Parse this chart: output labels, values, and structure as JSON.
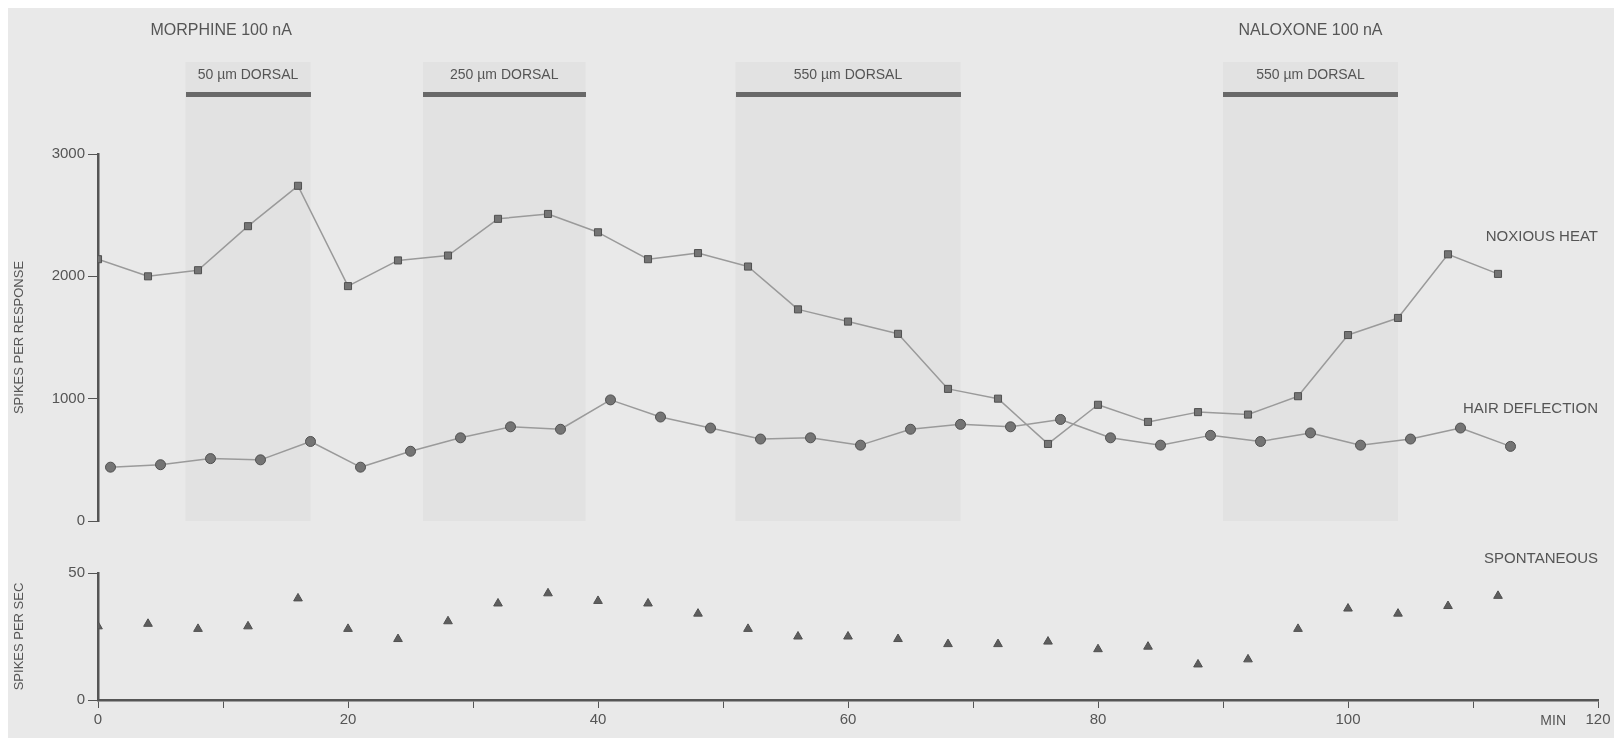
{
  "chart_data": [
    {
      "type": "line",
      "ylabel": "SPIKES PER RESPONSE",
      "xlim": [
        0,
        120
      ],
      "ylim": [
        0,
        3000
      ],
      "yticks": [
        0,
        1000,
        2000,
        3000
      ],
      "grid": false,
      "legend": false,
      "tick_labels": "y",
      "annotations": [
        "MORPHINE 100 nA",
        "NALOXONE 100 nA"
      ],
      "bands": [
        {
          "axis": "x",
          "from": 7,
          "to": 17,
          "label": "50 µm DORSAL",
          "color": "#6a6a6a"
        },
        {
          "axis": "x",
          "from": 26,
          "to": 39,
          "label": "250 µm DORSAL",
          "color": "#6a6a6a"
        },
        {
          "axis": "x",
          "from": 51,
          "to": 69,
          "label": "550 µm DORSAL",
          "color": "#6a6a6a"
        },
        {
          "axis": "x",
          "from": 90,
          "to": 104,
          "label": "550 µm DORSAL",
          "color": "#6a6a6a"
        }
      ],
      "series": [
        {
          "name": "NOXIOUS HEAT",
          "color": "#747474",
          "marker": "square",
          "x": [
            0,
            4,
            8,
            12,
            16,
            20,
            24,
            28,
            32,
            36,
            40,
            44,
            48,
            52,
            56,
            60,
            64,
            68,
            72,
            76,
            80,
            84,
            88,
            92,
            96,
            100,
            104,
            108,
            112
          ],
          "values": [
            2140,
            2000,
            2050,
            2410,
            2740,
            1920,
            2130,
            2170,
            2470,
            2510,
            2360,
            2140,
            2190,
            2080,
            1730,
            1630,
            1530,
            1080,
            1000,
            630,
            950,
            810,
            890,
            870,
            1020,
            1520,
            1660,
            2180,
            2020
          ]
        },
        {
          "name": "HAIR DEFLECTION",
          "color": "#747474",
          "marker": "circle",
          "x": [
            1,
            5,
            9,
            13,
            17,
            21,
            25,
            29,
            33,
            37,
            41,
            45,
            49,
            53,
            57,
            61,
            65,
            69,
            73,
            77,
            81,
            85,
            89,
            93,
            97,
            101,
            105,
            109,
            113
          ],
          "values": [
            440,
            460,
            510,
            500,
            650,
            440,
            570,
            680,
            770,
            750,
            990,
            850,
            760,
            670,
            680,
            620,
            750,
            790,
            770,
            830,
            680,
            620,
            700,
            650,
            720,
            620,
            670,
            760,
            610
          ]
        }
      ]
    },
    {
      "type": "scatter",
      "ylabel": "SPIKES PER SEC",
      "xlabel": "MIN",
      "xlim": [
        0,
        120
      ],
      "ylim": [
        0,
        50
      ],
      "yticks": [
        0,
        50
      ],
      "grid": false,
      "legend": false,
      "xticks": [
        0,
        {
          "value": 10,
          "label": null
        },
        20,
        {
          "value": 30,
          "label": null
        },
        40,
        {
          "value": 50,
          "label": null
        },
        60,
        {
          "value": 70,
          "label": null
        },
        80,
        {
          "value": 90,
          "label": null
        },
        100,
        {
          "value": 110,
          "label": null
        },
        120
      ],
      "series": [
        {
          "name": "SPONTANEOUS",
          "color": "#5e5e5e",
          "marker": "triangle",
          "x": [
            0,
            4,
            8,
            12,
            16,
            20,
            24,
            28,
            32,
            36,
            40,
            44,
            48,
            52,
            56,
            60,
            64,
            68,
            72,
            76,
            80,
            84,
            88,
            92,
            96,
            100,
            104,
            108,
            112
          ],
          "values": [
            29,
            30,
            28,
            29,
            40,
            28,
            24,
            31,
            38,
            42,
            39,
            38,
            34,
            28,
            25,
            25,
            24,
            22,
            22,
            23,
            20,
            21,
            14,
            16,
            28,
            36,
            34,
            37,
            41
          ]
        }
      ]
    }
  ]
}
